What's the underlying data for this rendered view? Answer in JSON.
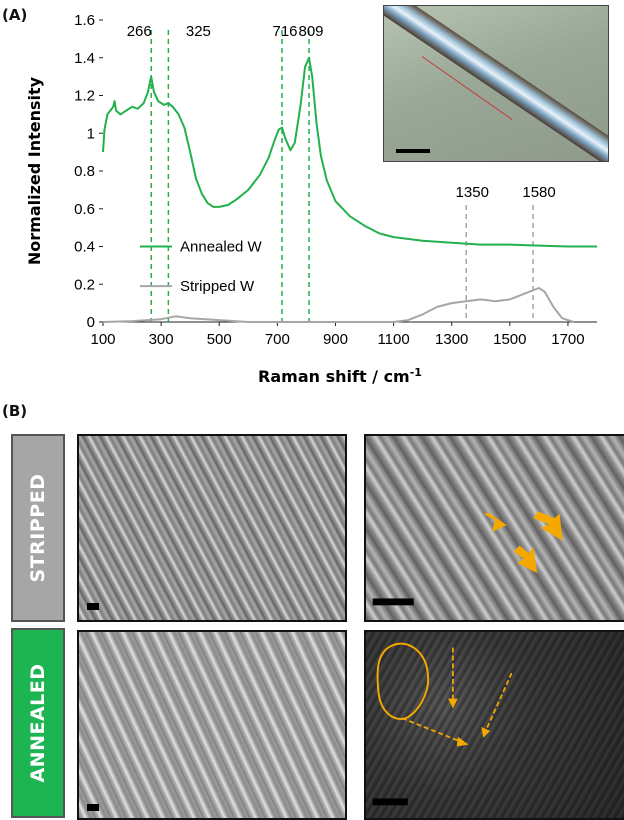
{
  "panel_a_label": "(A)",
  "panel_b_label": "(B)",
  "colors": {
    "annealed": "#22b14c",
    "stripped": "#a6a6a6",
    "peak_annealed": "#22b14c",
    "peak_stripped": "#a6a6a6",
    "arrow": "#f5a800"
  },
  "chart_data": {
    "type": "line",
    "xlabel": "Raman shift / cm",
    "xlabel_sup": "-1",
    "ylabel": "Normalized Intensity",
    "xlim": [
      100,
      1800
    ],
    "ylim": [
      0,
      1.6
    ],
    "x_ticks": [
      100,
      300,
      500,
      700,
      900,
      1100,
      1300,
      1500,
      1700
    ],
    "y_ticks": [
      0,
      0.2,
      0.4,
      0.6,
      0.8,
      1,
      1.2,
      1.4,
      1.6
    ],
    "y_tick_labels": [
      "0",
      "0.2",
      "0.4",
      "0.6",
      "0.8",
      "1",
      "1.2",
      "1.4",
      "1.6"
    ],
    "legend_position": "middle-left",
    "series": [
      {
        "name": "Annealed W",
        "color": "#22b14c",
        "points": [
          [
            100,
            0.9
          ],
          [
            105,
            1.02
          ],
          [
            115,
            1.1
          ],
          [
            125,
            1.12
          ],
          [
            135,
            1.14
          ],
          [
            140,
            1.17
          ],
          [
            145,
            1.12
          ],
          [
            160,
            1.1
          ],
          [
            180,
            1.12
          ],
          [
            200,
            1.14
          ],
          [
            220,
            1.13
          ],
          [
            240,
            1.16
          ],
          [
            255,
            1.22
          ],
          [
            266,
            1.3
          ],
          [
            275,
            1.22
          ],
          [
            290,
            1.17
          ],
          [
            310,
            1.15
          ],
          [
            325,
            1.16
          ],
          [
            340,
            1.14
          ],
          [
            360,
            1.1
          ],
          [
            380,
            1.03
          ],
          [
            400,
            0.9
          ],
          [
            420,
            0.76
          ],
          [
            440,
            0.68
          ],
          [
            460,
            0.63
          ],
          [
            480,
            0.61
          ],
          [
            500,
            0.61
          ],
          [
            530,
            0.62
          ],
          [
            560,
            0.65
          ],
          [
            600,
            0.7
          ],
          [
            640,
            0.78
          ],
          [
            670,
            0.87
          ],
          [
            690,
            0.96
          ],
          [
            705,
            1.02
          ],
          [
            716,
            1.03
          ],
          [
            728,
            0.97
          ],
          [
            745,
            0.91
          ],
          [
            760,
            0.95
          ],
          [
            780,
            1.15
          ],
          [
            795,
            1.35
          ],
          [
            809,
            1.4
          ],
          [
            820,
            1.3
          ],
          [
            835,
            1.05
          ],
          [
            850,
            0.88
          ],
          [
            870,
            0.75
          ],
          [
            900,
            0.64
          ],
          [
            950,
            0.56
          ],
          [
            1000,
            0.51
          ],
          [
            1050,
            0.47
          ],
          [
            1100,
            0.45
          ],
          [
            1200,
            0.43
          ],
          [
            1300,
            0.42
          ],
          [
            1400,
            0.41
          ],
          [
            1500,
            0.41
          ],
          [
            1600,
            0.405
          ],
          [
            1700,
            0.4
          ],
          [
            1800,
            0.4
          ]
        ]
      },
      {
        "name": "Stripped W",
        "color": "#a6a6a6",
        "points": [
          [
            100,
            0.0
          ],
          [
            200,
            0.005
          ],
          [
            300,
            0.015
          ],
          [
            350,
            0.03
          ],
          [
            400,
            0.02
          ],
          [
            500,
            0.01
          ],
          [
            600,
            0.0
          ],
          [
            1100,
            0.0
          ],
          [
            1150,
            0.01
          ],
          [
            1200,
            0.04
          ],
          [
            1250,
            0.08
          ],
          [
            1300,
            0.1
          ],
          [
            1350,
            0.11
          ],
          [
            1400,
            0.12
          ],
          [
            1450,
            0.11
          ],
          [
            1500,
            0.12
          ],
          [
            1550,
            0.15
          ],
          [
            1600,
            0.18
          ],
          [
            1620,
            0.16
          ],
          [
            1650,
            0.08
          ],
          [
            1680,
            0.02
          ],
          [
            1720,
            0.0
          ]
        ]
      }
    ],
    "peaks_annealed": [
      266,
      325,
      716,
      809
    ],
    "peak_labels_annealed": [
      "266",
      "325",
      "716",
      "809"
    ],
    "peaks_stripped": [
      1350,
      1580
    ],
    "peak_labels_stripped": [
      "1350",
      "1580"
    ]
  },
  "labels_b": {
    "stripped": "STRIPPED",
    "annealed": "ANNEALED"
  },
  "tab_colors": {
    "stripped": "#a6a6a6",
    "annealed": "#1db552"
  }
}
